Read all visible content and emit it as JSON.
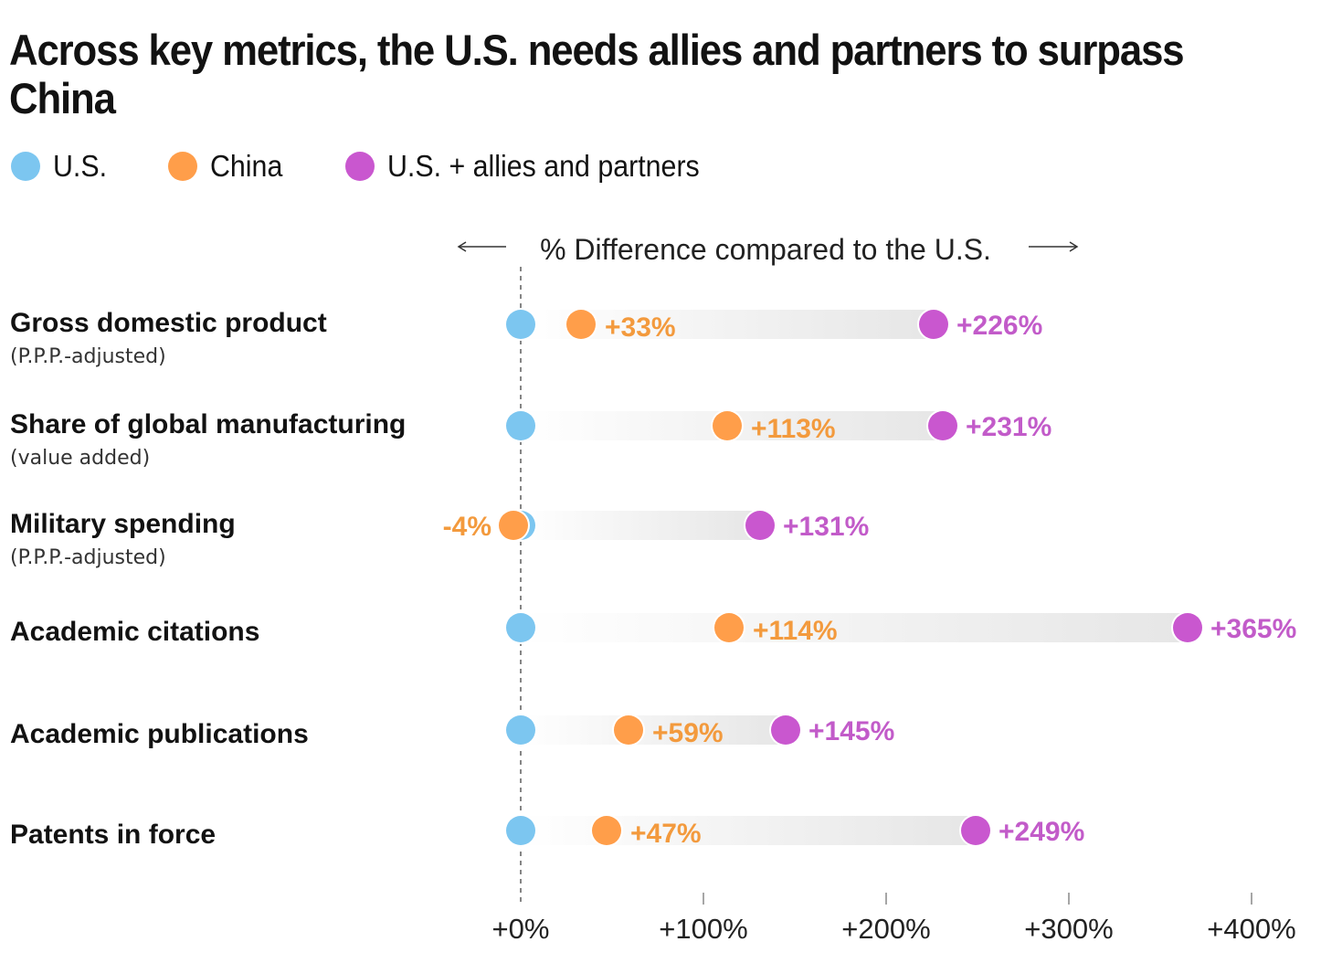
{
  "title": "Across key metrics, the U.S. needs allies and partners to surpass China",
  "legend": [
    {
      "label": "U.S.",
      "color": "#7CC6F0"
    },
    {
      "label": "China",
      "color": "#FF9E4A"
    },
    {
      "label": "U.S. + allies and partners",
      "color": "#C957CF"
    }
  ],
  "colors": {
    "us": "#7CC6F0",
    "china": "#FF9E4A",
    "allies": "#C957CF",
    "china_label": "#F39A3D",
    "allies_label": "#C25BC9"
  },
  "chart_data": {
    "type": "dot-range",
    "title": "Across key metrics, the U.S. needs allies and partners to surpass China",
    "xlabel": "% Difference compared to the U.S.",
    "ylabel": "",
    "xlim": [
      -15,
      430
    ],
    "xticks": [
      0,
      100,
      200,
      300,
      400
    ],
    "xtick_labels": [
      "+0%",
      "+100%",
      "+200%",
      "+300%",
      "+400%"
    ],
    "reference_line": 0,
    "legend_position": "top-left",
    "categories": [
      {
        "label": "Gross domestic product",
        "sublabel": "(P.P.P.-adjusted)"
      },
      {
        "label": "Share of global manufacturing",
        "sublabel": "(value added)"
      },
      {
        "label": "Military spending",
        "sublabel": "(P.P.P.-adjusted)"
      },
      {
        "label": "Academic citations",
        "sublabel": ""
      },
      {
        "label": "Academic publications",
        "sublabel": ""
      },
      {
        "label": "Patents in force",
        "sublabel": ""
      }
    ],
    "series": [
      {
        "name": "U.S.",
        "values": [
          0,
          0,
          0,
          0,
          0,
          0
        ],
        "labels": [
          "",
          "",
          "",
          "",
          "",
          ""
        ]
      },
      {
        "name": "China",
        "values": [
          33,
          113,
          -4,
          114,
          59,
          47
        ],
        "labels": [
          "+33%",
          "+113%",
          "-4%",
          "+114%",
          "+59%",
          "+47%"
        ]
      },
      {
        "name": "U.S. + allies and partners",
        "values": [
          226,
          231,
          131,
          365,
          145,
          249
        ],
        "labels": [
          "+226%",
          "+231%",
          "+131%",
          "+365%",
          "+145%",
          "+249%"
        ]
      }
    ]
  }
}
